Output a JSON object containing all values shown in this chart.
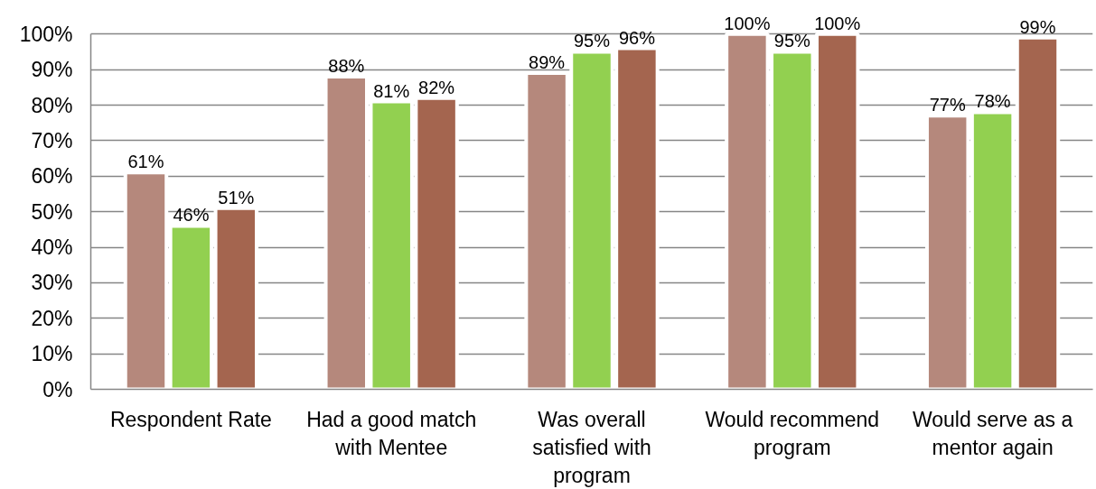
{
  "chart_data": {
    "type": "bar",
    "categories": [
      "Respondent Rate",
      "Had a good match with Mentee",
      "Was overall satisfied with program",
      "Would recommend program",
      "Would serve as a mentor again"
    ],
    "series": [
      {
        "color": "#b5887c",
        "values": [
          61,
          88,
          89,
          100,
          77
        ],
        "value_labels": [
          "61%",
          "88%",
          "89%",
          "100%",
          "77%"
        ]
      },
      {
        "color": "#92d050",
        "values": [
          46,
          81,
          95,
          95,
          78
        ],
        "value_labels": [
          "46%",
          "81%",
          "95%",
          "95%",
          "78%"
        ]
      },
      {
        "color": "#a4654f",
        "values": [
          51,
          82,
          96,
          100,
          99
        ],
        "value_labels": [
          "51%",
          "82%",
          "96%",
          "100%",
          "99%"
        ]
      }
    ],
    "ylim": [
      0,
      100
    ],
    "yticks": [
      {
        "value": 0,
        "label": "0%"
      },
      {
        "value": 10,
        "label": "10%"
      },
      {
        "value": 20,
        "label": "20%"
      },
      {
        "value": 30,
        "label": "30%"
      },
      {
        "value": 40,
        "label": "40%"
      },
      {
        "value": 50,
        "label": "50%"
      },
      {
        "value": 60,
        "label": "60%"
      },
      {
        "value": 70,
        "label": "70%"
      },
      {
        "value": 80,
        "label": "80%"
      },
      {
        "value": 90,
        "label": "90%"
      },
      {
        "value": 100,
        "label": "100%"
      }
    ],
    "grid": "y"
  }
}
